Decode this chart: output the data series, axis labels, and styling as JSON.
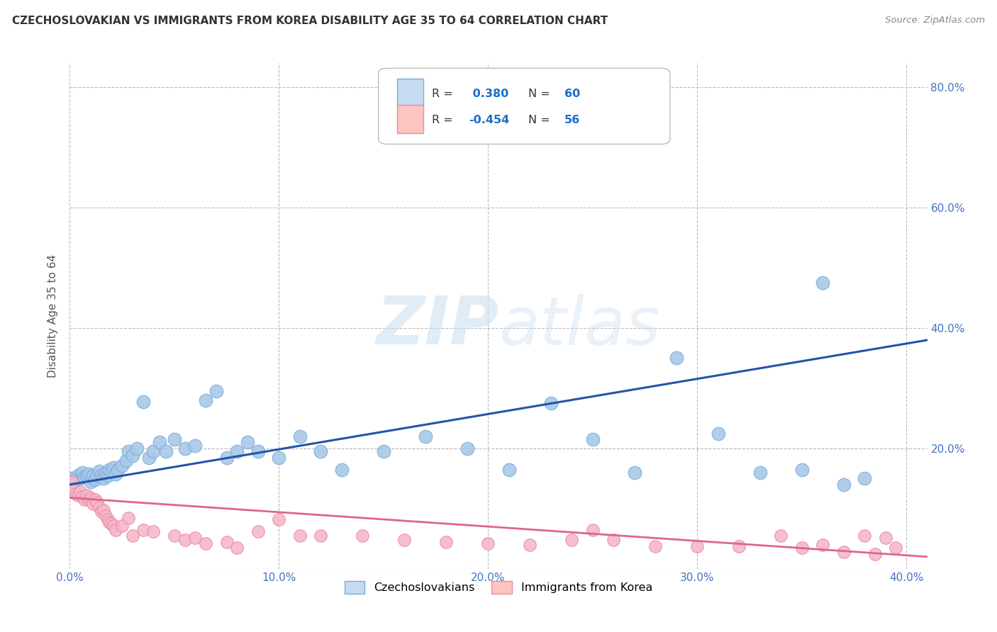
{
  "title": "CZECHOSLOVAKIAN VS IMMIGRANTS FROM KOREA DISABILITY AGE 35 TO 64 CORRELATION CHART",
  "source": "Source: ZipAtlas.com",
  "ylabel": "Disability Age 35 to 64",
  "legend_label1": "Czechoslovakians",
  "legend_label2": "Immigrants from Korea",
  "R1": 0.38,
  "N1": 60,
  "R2": -0.454,
  "N2": 56,
  "blue_dot_color": "#a8c8e8",
  "blue_dot_edge": "#7aacda",
  "pink_dot_color": "#f5b8c8",
  "pink_dot_edge": "#e88aa8",
  "blue_legend_fill": "#c6dbef",
  "blue_legend_edge": "#7aacda",
  "pink_legend_fill": "#fcc5c0",
  "pink_legend_edge": "#e88aa8",
  "line_blue": "#2255aa",
  "line_pink": "#dd6688",
  "xlim": [
    0.0,
    0.41
  ],
  "ylim": [
    0.0,
    0.84
  ],
  "xticks": [
    0.0,
    0.1,
    0.2,
    0.3,
    0.4
  ],
  "yticks": [
    0.0,
    0.2,
    0.4,
    0.6,
    0.8
  ],
  "xtick_labels": [
    "0.0%",
    "10.0%",
    "20.0%",
    "30.0%",
    "40.0%"
  ],
  "ytick_labels": [
    "",
    "20.0%",
    "40.0%",
    "60.0%",
    "80.0%"
  ],
  "blue_x": [
    0.001,
    0.002,
    0.003,
    0.004,
    0.005,
    0.006,
    0.007,
    0.008,
    0.009,
    0.01,
    0.011,
    0.012,
    0.013,
    0.014,
    0.015,
    0.016,
    0.017,
    0.018,
    0.019,
    0.02,
    0.021,
    0.022,
    0.023,
    0.025,
    0.027,
    0.028,
    0.03,
    0.032,
    0.035,
    0.038,
    0.04,
    0.043,
    0.046,
    0.05,
    0.055,
    0.06,
    0.065,
    0.07,
    0.075,
    0.08,
    0.085,
    0.09,
    0.1,
    0.11,
    0.12,
    0.13,
    0.15,
    0.17,
    0.19,
    0.21,
    0.23,
    0.25,
    0.27,
    0.29,
    0.31,
    0.33,
    0.35,
    0.36,
    0.37,
    0.38
  ],
  "blue_y": [
    0.15,
    0.145,
    0.148,
    0.155,
    0.15,
    0.16,
    0.152,
    0.155,
    0.158,
    0.145,
    0.155,
    0.148,
    0.155,
    0.162,
    0.155,
    0.15,
    0.16,
    0.155,
    0.165,
    0.162,
    0.168,
    0.158,
    0.165,
    0.172,
    0.18,
    0.195,
    0.188,
    0.2,
    0.278,
    0.185,
    0.195,
    0.21,
    0.195,
    0.215,
    0.2,
    0.205,
    0.28,
    0.295,
    0.185,
    0.195,
    0.21,
    0.195,
    0.185,
    0.22,
    0.195,
    0.165,
    0.195,
    0.22,
    0.2,
    0.165,
    0.275,
    0.215,
    0.16,
    0.35,
    0.225,
    0.16,
    0.165,
    0.475,
    0.14,
    0.15
  ],
  "pink_x": [
    0.001,
    0.002,
    0.003,
    0.004,
    0.005,
    0.006,
    0.007,
    0.008,
    0.009,
    0.01,
    0.011,
    0.012,
    0.013,
    0.014,
    0.015,
    0.016,
    0.017,
    0.018,
    0.019,
    0.02,
    0.021,
    0.022,
    0.025,
    0.028,
    0.03,
    0.035,
    0.04,
    0.05,
    0.055,
    0.06,
    0.065,
    0.075,
    0.08,
    0.09,
    0.1,
    0.11,
    0.12,
    0.14,
    0.16,
    0.18,
    0.2,
    0.22,
    0.24,
    0.25,
    0.26,
    0.28,
    0.3,
    0.32,
    0.34,
    0.35,
    0.36,
    0.37,
    0.38,
    0.385,
    0.39,
    0.395
  ],
  "pink_y": [
    0.145,
    0.13,
    0.125,
    0.122,
    0.128,
    0.12,
    0.115,
    0.122,
    0.115,
    0.118,
    0.108,
    0.115,
    0.11,
    0.102,
    0.095,
    0.098,
    0.088,
    0.082,
    0.078,
    0.075,
    0.072,
    0.065,
    0.072,
    0.085,
    0.055,
    0.065,
    0.062,
    0.055,
    0.048,
    0.052,
    0.042,
    0.045,
    0.035,
    0.062,
    0.082,
    0.055,
    0.055,
    0.055,
    0.048,
    0.045,
    0.042,
    0.04,
    0.048,
    0.065,
    0.048,
    0.038,
    0.038,
    0.038,
    0.055,
    0.035,
    0.04,
    0.028,
    0.055,
    0.025,
    0.052,
    0.035
  ],
  "blue_line_x0": 0.0,
  "blue_line_x1": 0.41,
  "blue_line_y0": 0.14,
  "blue_line_y1": 0.38,
  "pink_line_x0": 0.0,
  "pink_line_x1": 0.41,
  "pink_line_y0": 0.118,
  "pink_line_y1": 0.02
}
